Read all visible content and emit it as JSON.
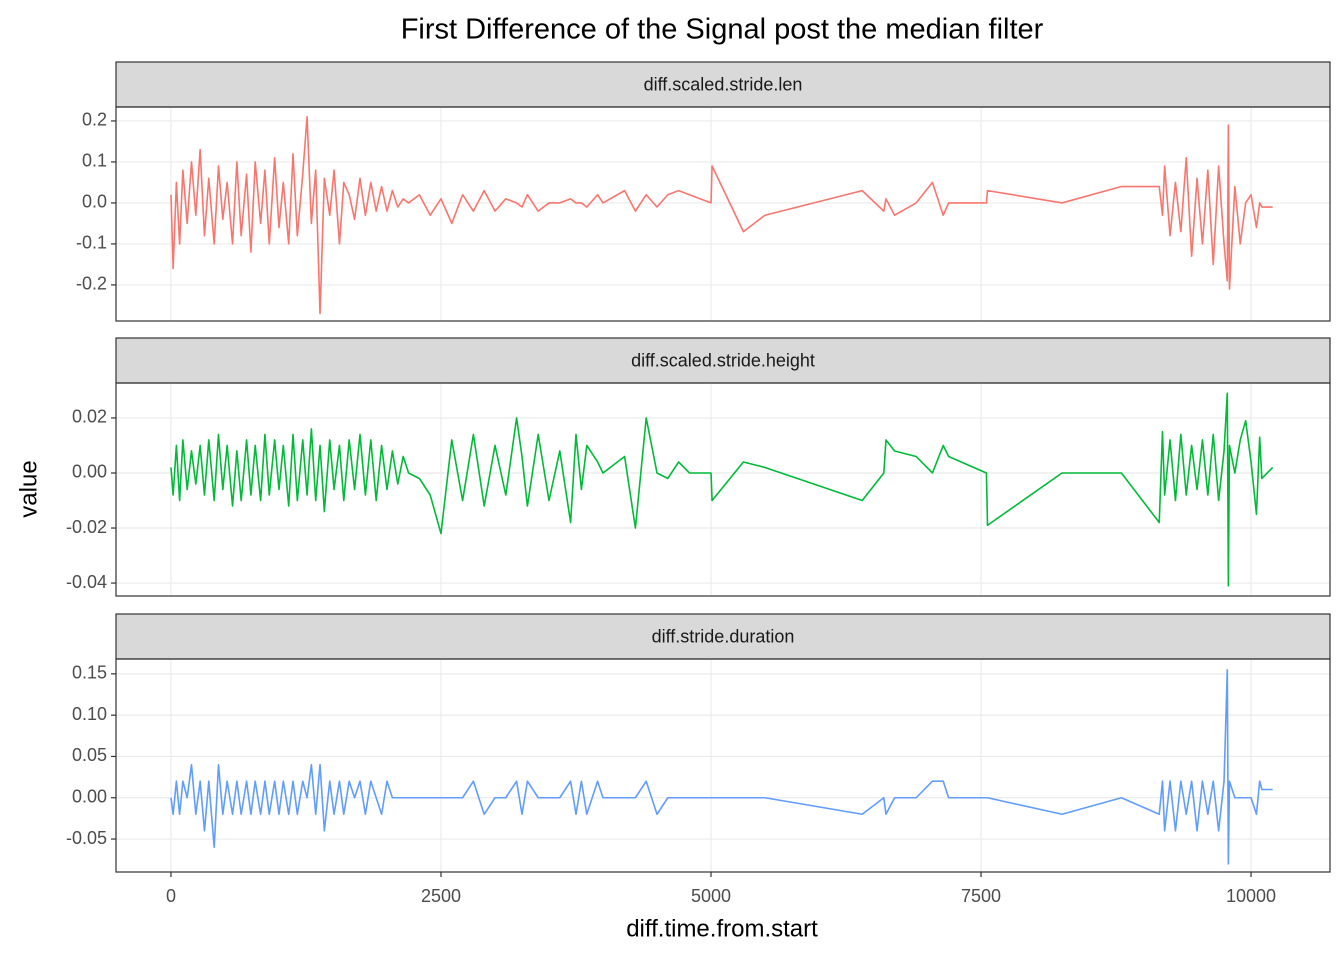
{
  "chart_data": {
    "type": "line",
    "title": "First Difference of the Signal post the median filter",
    "x_label": "diff.time.from.start",
    "y_label": "value",
    "grid": true,
    "x": [
      0,
      20,
      50,
      80,
      110,
      150,
      190,
      230,
      270,
      310,
      350,
      400,
      440,
      480,
      520,
      570,
      610,
      650,
      700,
      740,
      780,
      830,
      870,
      910,
      960,
      1000,
      1040,
      1090,
      1130,
      1170,
      1220,
      1260,
      1300,
      1340,
      1380,
      1420,
      1470,
      1510,
      1560,
      1600,
      1650,
      1700,
      1750,
      1800,
      1850,
      1900,
      1950,
      2000,
      2050,
      2100,
      2150,
      2200,
      2300,
      2400,
      2500,
      2600,
      2700,
      2800,
      2900,
      3000,
      3100,
      3200,
      3250,
      3300,
      3400,
      3500,
      3600,
      3700,
      3750,
      3800,
      3850,
      3950,
      4000,
      4200,
      4300,
      4400,
      4500,
      4600,
      4700,
      4800,
      5000,
      5010,
      5300,
      5500,
      6400,
      6600,
      6620,
      6700,
      6900,
      7050,
      7150,
      7200,
      7550,
      7560,
      8250,
      8800,
      9150,
      9180,
      9200,
      9250,
      9300,
      9350,
      9400,
      9450,
      9500,
      9550,
      9600,
      9650,
      9700,
      9750,
      9780,
      9790,
      9800,
      9850,
      9900,
      9950,
      10000,
      10050,
      10080,
      10100,
      10200
    ],
    "xlim": [
      -509,
      10731
    ],
    "xticks": [
      0,
      2500,
      5000,
      7500,
      10000
    ],
    "series": [
      {
        "name": "diff.scaled.stride.len",
        "color": "#F8766D",
        "ylim": [
          -0.288,
          0.234
        ],
        "yticks": [
          -0.2,
          -0.1,
          {
            "value": 0,
            "label": "0.0"
          },
          0.1,
          0.2
        ],
        "values": [
          0.02,
          -0.16,
          0.05,
          -0.1,
          0.08,
          -0.05,
          0.1,
          -0.03,
          0.13,
          -0.08,
          0.06,
          -0.1,
          0.09,
          -0.04,
          0.05,
          -0.1,
          0.1,
          -0.08,
          0.07,
          -0.12,
          0.1,
          -0.05,
          0.08,
          -0.1,
          0.11,
          -0.06,
          0.05,
          -0.1,
          0.12,
          -0.08,
          0.07,
          0.21,
          -0.05,
          0.08,
          -0.27,
          0.06,
          -0.03,
          0.08,
          -0.1,
          0.05,
          0.02,
          -0.04,
          0.06,
          -0.03,
          0.05,
          -0.02,
          0.04,
          -0.02,
          0.03,
          -0.01,
          0.01,
          0.0,
          0.02,
          -0.03,
          0.01,
          -0.05,
          0.02,
          -0.02,
          0.03,
          -0.02,
          0.01,
          0.0,
          -0.01,
          0.02,
          -0.02,
          0.0,
          0.0,
          0.01,
          0.0,
          0.0,
          -0.01,
          0.02,
          0.0,
          0.03,
          -0.02,
          0.02,
          -0.01,
          0.02,
          0.03,
          0.02,
          0.0,
          0.09,
          -0.07,
          -0.03,
          0.03,
          -0.02,
          0.01,
          -0.03,
          0.0,
          0.05,
          -0.03,
          0.0,
          0.0,
          0.03,
          0.0,
          0.04,
          0.04,
          -0.03,
          0.09,
          -0.08,
          0.05,
          -0.07,
          0.11,
          -0.13,
          0.06,
          -0.1,
          0.08,
          -0.15,
          0.09,
          -0.1,
          -0.19,
          0.19,
          -0.21,
          0.04,
          -0.1,
          0.0,
          0.02,
          -0.06,
          0.0,
          -0.01,
          -0.01
        ]
      },
      {
        "name": "diff.scaled.stride.height",
        "color": "#00BA38",
        "ylim": [
          -0.0447,
          0.0327
        ],
        "yticks": [
          -0.04,
          -0.02,
          {
            "value": 0,
            "label": "0.00"
          },
          0.02
        ],
        "values": [
          0.002,
          -0.008,
          0.01,
          -0.01,
          0.012,
          -0.006,
          0.008,
          -0.004,
          0.01,
          -0.008,
          0.012,
          -0.01,
          0.014,
          -0.006,
          0.01,
          -0.012,
          0.008,
          -0.01,
          0.012,
          -0.008,
          0.01,
          -0.01,
          0.014,
          -0.008,
          0.012,
          -0.006,
          0.01,
          -0.012,
          0.014,
          -0.01,
          0.012,
          -0.008,
          0.016,
          -0.01,
          0.01,
          -0.014,
          0.012,
          -0.006,
          0.01,
          -0.01,
          0.012,
          -0.006,
          0.014,
          -0.008,
          0.012,
          -0.01,
          0.01,
          -0.006,
          0.008,
          -0.004,
          0.006,
          0.0,
          -0.002,
          -0.008,
          -0.022,
          0.012,
          -0.01,
          0.014,
          -0.012,
          0.01,
          -0.008,
          0.02,
          0.006,
          -0.012,
          0.014,
          -0.01,
          0.008,
          -0.018,
          0.014,
          -0.006,
          0.01,
          0.004,
          0.0,
          0.006,
          -0.02,
          0.02,
          0.0,
          -0.002,
          0.004,
          0.0,
          0.0,
          -0.01,
          0.004,
          0.002,
          -0.01,
          0.0,
          0.012,
          0.008,
          0.006,
          0.0,
          0.01,
          0.006,
          0.0,
          -0.019,
          0.0,
          0.0,
          -0.018,
          0.015,
          -0.008,
          0.012,
          -0.01,
          0.014,
          -0.008,
          0.01,
          -0.006,
          0.012,
          -0.008,
          0.014,
          -0.01,
          0.008,
          0.029,
          -0.041,
          0.01,
          0.0,
          0.012,
          0.019,
          0.004,
          -0.015,
          0.013,
          -0.002,
          0.002
        ]
      },
      {
        "name": "diff.stride.duration",
        "color": "#619CFF",
        "ylim": [
          -0.0899,
          0.168
        ],
        "yticks": [
          -0.05,
          {
            "value": 0,
            "label": "0.00"
          },
          0.05,
          {
            "value": 0.1,
            "label": "0.10"
          },
          0.15
        ],
        "values": [
          0.0,
          -0.02,
          0.02,
          -0.02,
          0.02,
          0.0,
          0.04,
          -0.02,
          0.02,
          -0.04,
          0.02,
          -0.06,
          0.04,
          -0.02,
          0.02,
          -0.02,
          0.02,
          -0.02,
          0.02,
          -0.02,
          0.02,
          -0.02,
          0.02,
          -0.02,
          0.02,
          -0.02,
          0.02,
          -0.02,
          0.02,
          -0.02,
          0.02,
          0.0,
          0.04,
          -0.02,
          0.04,
          -0.04,
          0.02,
          -0.02,
          0.02,
          -0.02,
          0.02,
          0.0,
          0.02,
          -0.02,
          0.02,
          0.0,
          -0.02,
          0.02,
          0.0,
          0.0,
          0.0,
          0.0,
          0.0,
          0.0,
          0.0,
          0.0,
          0.0,
          0.02,
          -0.02,
          0.0,
          0.0,
          0.02,
          -0.02,
          0.02,
          0.0,
          0.0,
          0.0,
          0.02,
          -0.02,
          0.02,
          -0.02,
          0.02,
          0.0,
          0.0,
          0.0,
          0.02,
          -0.02,
          0.0,
          0.0,
          0.0,
          0.0,
          0.0,
          0.0,
          0.0,
          -0.02,
          0.0,
          -0.02,
          0.0,
          0.0,
          0.02,
          0.02,
          0.0,
          0.0,
          0.0,
          -0.02,
          0.0,
          -0.02,
          0.02,
          -0.04,
          0.02,
          -0.04,
          0.02,
          -0.02,
          0.02,
          -0.04,
          0.02,
          -0.02,
          0.02,
          -0.04,
          0.02,
          0.155,
          -0.08,
          0.02,
          0.0,
          0.0,
          0.0,
          0.0,
          -0.02,
          0.02,
          0.01,
          0.01
        ]
      }
    ]
  }
}
